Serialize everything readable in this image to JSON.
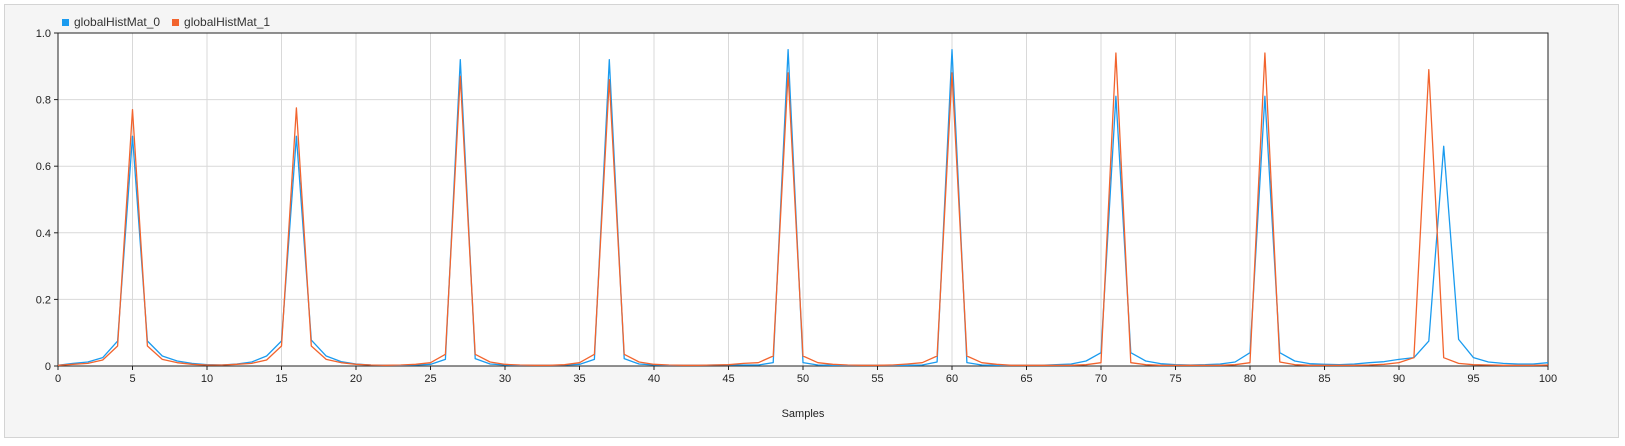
{
  "legend": {
    "items": [
      {
        "label": "globalHistMat_0",
        "color": "#1a9bef"
      },
      {
        "label": "globalHistMat_1",
        "color": "#f2642e"
      }
    ]
  },
  "chart_data": {
    "type": "line",
    "xlabel": "Samples",
    "ylabel": "",
    "xlim": [
      0,
      100
    ],
    "ylim": [
      0,
      1
    ],
    "xticks": [
      0,
      5,
      10,
      15,
      20,
      25,
      30,
      35,
      40,
      45,
      50,
      55,
      60,
      65,
      70,
      75,
      80,
      85,
      90,
      95,
      100
    ],
    "yticks": [
      0,
      0.2,
      0.4,
      0.6,
      0.8,
      1.0
    ],
    "ytick_labels": [
      "0",
      "0.2",
      "0.4",
      "0.6",
      "0.8",
      "1.0"
    ],
    "grid": true,
    "legend_position": "top-left",
    "x": [
      0,
      1,
      2,
      3,
      4,
      5,
      6,
      7,
      8,
      9,
      10,
      11,
      12,
      13,
      14,
      15,
      16,
      17,
      18,
      19,
      20,
      21,
      22,
      23,
      24,
      25,
      26,
      27,
      28,
      29,
      30,
      31,
      32,
      33,
      34,
      35,
      36,
      37,
      38,
      39,
      40,
      41,
      42,
      43,
      44,
      45,
      46,
      47,
      48,
      49,
      50,
      51,
      52,
      53,
      54,
      55,
      56,
      57,
      58,
      59,
      60,
      61,
      62,
      63,
      64,
      65,
      66,
      67,
      68,
      69,
      70,
      71,
      72,
      73,
      74,
      75,
      76,
      77,
      78,
      79,
      80,
      81,
      82,
      83,
      84,
      85,
      86,
      87,
      88,
      89,
      90,
      91,
      92,
      93,
      94,
      95,
      96,
      97,
      98,
      99,
      100
    ],
    "series": [
      {
        "name": "globalHistMat_0",
        "color": "#1a9bef",
        "values": [
          0.002,
          0.008,
          0.012,
          0.025,
          0.075,
          0.69,
          0.075,
          0.03,
          0.015,
          0.008,
          0.004,
          0.003,
          0.006,
          0.012,
          0.03,
          0.075,
          0.69,
          0.078,
          0.03,
          0.013,
          0.006,
          0.003,
          0.002,
          0.002,
          0.003,
          0.005,
          0.02,
          0.92,
          0.022,
          0.006,
          0.003,
          0.002,
          0.002,
          0.002,
          0.003,
          0.005,
          0.02,
          0.92,
          0.022,
          0.006,
          0.003,
          0.002,
          0.002,
          0.002,
          0.003,
          0.003,
          0.003,
          0.003,
          0.01,
          0.95,
          0.01,
          0.003,
          0.002,
          0.002,
          0.002,
          0.002,
          0.002,
          0.002,
          0.003,
          0.012,
          0.95,
          0.01,
          0.003,
          0.002,
          0.002,
          0.002,
          0.002,
          0.004,
          0.006,
          0.015,
          0.04,
          0.81,
          0.04,
          0.015,
          0.007,
          0.004,
          0.003,
          0.004,
          0.006,
          0.012,
          0.04,
          0.81,
          0.04,
          0.015,
          0.007,
          0.005,
          0.004,
          0.006,
          0.01,
          0.013,
          0.02,
          0.025,
          0.075,
          0.66,
          0.08,
          0.025,
          0.012,
          0.008,
          0.006,
          0.006,
          0.01
        ]
      },
      {
        "name": "globalHistMat_1",
        "color": "#f2642e",
        "values": [
          0.002,
          0.005,
          0.008,
          0.018,
          0.06,
          0.77,
          0.06,
          0.02,
          0.01,
          0.005,
          0.003,
          0.003,
          0.005,
          0.008,
          0.018,
          0.06,
          0.775,
          0.06,
          0.02,
          0.01,
          0.005,
          0.003,
          0.002,
          0.003,
          0.005,
          0.01,
          0.035,
          0.87,
          0.035,
          0.012,
          0.005,
          0.003,
          0.002,
          0.002,
          0.004,
          0.01,
          0.035,
          0.86,
          0.035,
          0.012,
          0.005,
          0.003,
          0.002,
          0.002,
          0.003,
          0.004,
          0.008,
          0.01,
          0.03,
          0.88,
          0.03,
          0.01,
          0.005,
          0.003,
          0.002,
          0.002,
          0.003,
          0.006,
          0.01,
          0.03,
          0.88,
          0.03,
          0.01,
          0.005,
          0.002,
          0.002,
          0.002,
          0.002,
          0.002,
          0.004,
          0.01,
          0.94,
          0.01,
          0.004,
          0.002,
          0.002,
          0.002,
          0.002,
          0.002,
          0.004,
          0.01,
          0.94,
          0.012,
          0.004,
          0.002,
          0.002,
          0.002,
          0.002,
          0.003,
          0.005,
          0.01,
          0.025,
          0.89,
          0.025,
          0.008,
          0.004,
          0.003,
          0.002,
          0.002,
          0.002,
          0.003
        ]
      }
    ]
  }
}
